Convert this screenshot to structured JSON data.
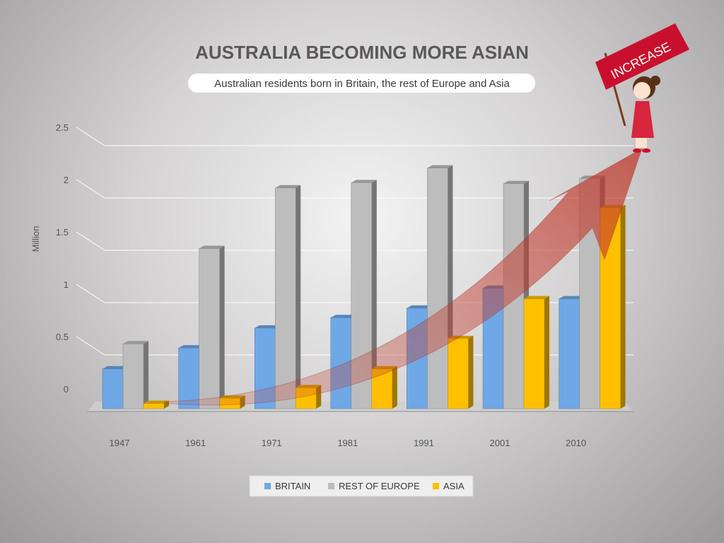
{
  "chart_data": {
    "type": "bar",
    "title": "AUSTRALIA BECOMING MORE ASIAN",
    "subtitle": "Australian residents born in Britain,  the rest of Europe and Asia",
    "ylabel": "Million",
    "xlabel": "",
    "categories": [
      "1947",
      "1961",
      "1971",
      "1981",
      "1991",
      "2001",
      "2010"
    ],
    "ylim": [
      0,
      2.5
    ],
    "yticks": [
      "0",
      "0.5",
      "1",
      "1.5",
      "2",
      "2.5"
    ],
    "series": [
      {
        "name": "BRITAIN",
        "color": "#6fa8e6",
        "values": [
          0.38,
          0.58,
          0.77,
          0.87,
          0.96,
          1.15,
          1.05
        ]
      },
      {
        "name": "REST OF EUROPE",
        "color": "#bdbdbd",
        "values": [
          0.62,
          1.53,
          2.11,
          2.16,
          2.3,
          2.15,
          2.2
        ]
      },
      {
        "name": "ASIA",
        "color": "#ffc000",
        "values": [
          0.05,
          0.1,
          0.2,
          0.38,
          0.67,
          1.05,
          1.92
        ]
      }
    ],
    "grid": true,
    "legend_position": "bottom",
    "annotation": "INCREASE"
  }
}
